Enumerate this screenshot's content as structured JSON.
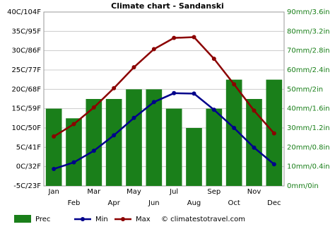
{
  "chart_data": {
    "type": "combo",
    "title": "Climate chart - Sandanski",
    "categories": [
      "Jan",
      "Feb",
      "Mar",
      "Apr",
      "May",
      "Jun",
      "Jul",
      "Aug",
      "Sep",
      "Oct",
      "Nov",
      "Dec"
    ],
    "series": [
      {
        "name": "Prec",
        "type": "bar",
        "axis": "y2",
        "color": "#1a7f1a",
        "values": [
          40,
          35,
          45,
          45,
          50,
          50,
          40,
          30,
          40,
          55,
          45,
          55
        ]
      },
      {
        "name": "Min",
        "type": "line",
        "color": "#00008b",
        "values": [
          -0.6,
          1.1,
          4.1,
          8.1,
          12.6,
          16.7,
          19.0,
          18.9,
          14.7,
          10.0,
          4.9,
          0.6
        ]
      },
      {
        "name": "Max",
        "type": "line",
        "color": "#8b0000",
        "values": [
          7.8,
          11.0,
          15.3,
          20.3,
          25.7,
          30.4,
          33.3,
          33.5,
          27.9,
          21.3,
          14.5,
          8.6
        ]
      }
    ],
    "ylim": [
      -5,
      40
    ],
    "yticks": [
      {
        "value": -5,
        "label": "-5C/23F"
      },
      {
        "value": 0,
        "label": "0C/32F"
      },
      {
        "value": 5,
        "label": "5C/41F"
      },
      {
        "value": 10,
        "label": "10C/50F"
      },
      {
        "value": 15,
        "label": "15C/59F"
      },
      {
        "value": 20,
        "label": "20C/68F"
      },
      {
        "value": 25,
        "label": "25C/77F"
      },
      {
        "value": 30,
        "label": "30C/86F"
      },
      {
        "value": 35,
        "label": "35C/95F"
      },
      {
        "value": 40,
        "label": "40C/104F"
      }
    ],
    "y2lim": [
      0,
      90
    ],
    "y2ticks": [
      {
        "value": 0,
        "label": "0mm/0in"
      },
      {
        "value": 10,
        "label": "10mm/0.4in"
      },
      {
        "value": 20,
        "label": "20mm/0.8in"
      },
      {
        "value": 30,
        "label": "30mm/1.2in"
      },
      {
        "value": 40,
        "label": "40mm/1.6in"
      },
      {
        "value": 50,
        "label": "50mm/2in"
      },
      {
        "value": 60,
        "label": "60mm/2.4in"
      },
      {
        "value": 70,
        "label": "70mm/2.8in"
      },
      {
        "value": 80,
        "label": "80mm/3.2in"
      },
      {
        "value": 90,
        "label": "90mm/3.6in"
      }
    ],
    "grid": true,
    "annotation": "© climatestotravel.com"
  }
}
